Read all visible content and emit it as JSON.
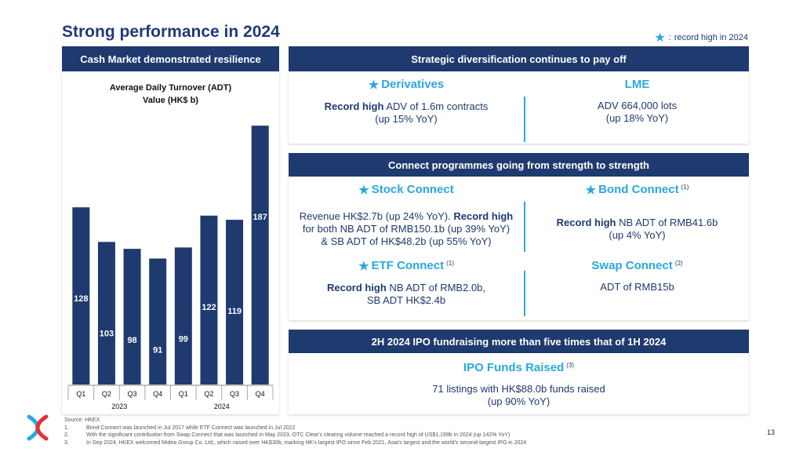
{
  "title": "Strong performance in 2024",
  "legend": {
    "separator": ":",
    "text": "record high in 2024"
  },
  "left": {
    "header": "Cash Market demonstrated resilience",
    "chart_title_line1": "Average Daily Turnover (ADT)",
    "chart_title_line2": "Value (HK$ b)"
  },
  "chart_data": {
    "type": "bar",
    "title": "Average Daily Turnover (ADT) Value (HK$ b)",
    "categories": [
      "Q1",
      "Q2",
      "Q3",
      "Q4",
      "Q1",
      "Q2",
      "Q3",
      "Q4"
    ],
    "groups": [
      {
        "label": "2023",
        "count": 4
      },
      {
        "label": "2024",
        "count": 4
      }
    ],
    "values": [
      128,
      103,
      98,
      91,
      99,
      122,
      119,
      187
    ],
    "ylim": [
      0,
      195
    ],
    "color": "#1f3a6e"
  },
  "diversification": {
    "header": "Strategic diversification continues to pay off",
    "derivatives": {
      "title": "Derivatives",
      "bold": "Record high",
      "rest": " ADV of 1.6m contracts",
      "line2": "(up 15% YoY)"
    },
    "lme": {
      "title": "LME",
      "line1": "ADV 664,000 lots",
      "line2": "(up 18% YoY)"
    }
  },
  "connect": {
    "header": "Connect programmes going from strength to strength",
    "stock": {
      "title": "Stock Connect",
      "l1a": "Revenue HK$2.7b (up 24% YoY). ",
      "l1b": "Record high",
      "l2": "for both NB ADT of RMB150.1b (up 39% YoY)",
      "l3": "& SB ADT of HK$48.2b (up 55% YoY)"
    },
    "bond": {
      "title": "Bond Connect",
      "sup": "(1)",
      "bold": "Record high",
      "rest": " NB ADT of RMB41.6b",
      "line2": "(up 4% YoY)"
    },
    "etf": {
      "title": "ETF Connect",
      "sup": "(1)",
      "bold": "Record high",
      "rest": " NB ADT of RMB2.0b,",
      "line2": "SB ADT HK$2.4b"
    },
    "swap": {
      "title": "Swap Connect",
      "sup": "(2)",
      "line1": "ADT of RMB15b"
    }
  },
  "ipo": {
    "header": "2H 2024 IPO fundraising more than five times that of 1H 2024",
    "title": "IPO Funds Raised",
    "sup": "(3)",
    "line1": "71 listings with HK$88.0b funds raised",
    "line2": "(up 90% YoY)"
  },
  "footer": {
    "source": "Source: HKEX",
    "notes": [
      {
        "num": "1.",
        "text": "Bond Connect was launched in Jul 2017 while ETF Connect was launched in Jul 2022"
      },
      {
        "num": "2.",
        "text": "With the significant contribution from Swap Connect that was launched in May 2023, OTC Clear's clearing volume reached a record high of US$1,199b in 2024 (up 142% YoY)"
      },
      {
        "num": "3.",
        "text": "In Sep 2024, HKEX welcomed Midea Group Co. Ltd., which raised over HK$30b, marking HK's largest IPO since Feb 2021, Asia's largest and the world's second-largest IPO in 2024"
      }
    ]
  },
  "page_number": "13",
  "colors": {
    "navy": "#1f3a6e",
    "accent": "#2aa8e0",
    "logo_red": "#e2323a"
  }
}
